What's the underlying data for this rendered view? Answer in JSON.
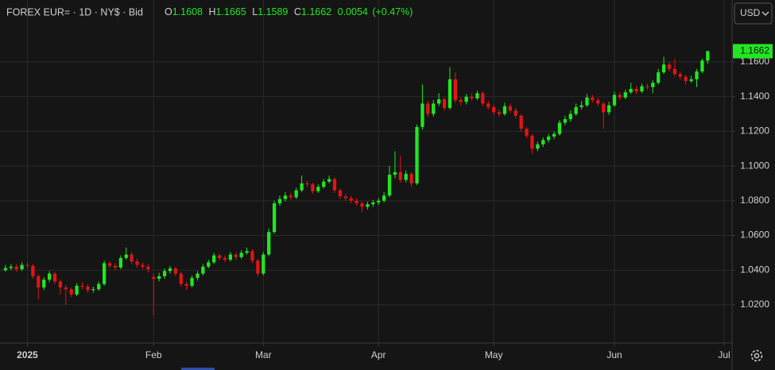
{
  "header": {
    "symbol": "FOREX EUR= · 1D · NY$ · Bid",
    "o": "O",
    "h": "H",
    "l": "L",
    "c": "C",
    "change": 0.0054,
    "change_percent": "(+0.47%)",
    "currency": "USD"
  },
  "chart_data": {
    "type": "candlestick",
    "up_color": "#22e622",
    "down_color": "#e31414",
    "grid": true,
    "ylim": [
      0.998,
      1.1957
    ],
    "yticks": [
      {
        "value": 1.02,
        "label": "1.0200"
      },
      {
        "value": 1.04,
        "label": "1.0400"
      },
      {
        "value": 1.06,
        "label": "1.0600"
      },
      {
        "value": 1.08,
        "label": "1.0800"
      },
      {
        "value": 1.1,
        "label": "1.1000"
      },
      {
        "value": 1.12,
        "label": "1.1200"
      },
      {
        "value": 1.14,
        "label": "1.1400"
      },
      {
        "value": 1.16,
        "label": "1.1600"
      }
    ],
    "xlim": [
      -1,
      132.3
    ],
    "xticks": [
      {
        "value": 4,
        "label": "2025"
      },
      {
        "value": 27,
        "label": "Feb"
      },
      {
        "value": 47,
        "label": "Mar"
      },
      {
        "value": 68,
        "label": "Apr"
      },
      {
        "value": 89,
        "label": "May"
      },
      {
        "value": 111,
        "label": "Jun"
      },
      {
        "value": 131,
        "label": "Jul"
      }
    ],
    "open": [
      1.04,
      1.0412,
      1.042,
      1.0405,
      1.043,
      1.0425,
      1.0365,
      1.03,
      1.0345,
      1.038,
      1.0335,
      1.03,
      1.029,
      1.026,
      1.031,
      1.0305,
      1.0285,
      1.029,
      1.032,
      1.044,
      1.0425,
      1.0415,
      1.047,
      1.049,
      1.045,
      1.043,
      1.042,
      1.036,
      1.035,
      1.0365,
      1.0395,
      1.041,
      1.038,
      1.032,
      1.031,
      1.0355,
      1.038,
      1.042,
      1.0445,
      1.0485,
      1.047,
      1.046,
      1.049,
      1.0475,
      1.05,
      1.051,
      1.0455,
      1.038,
      1.049,
      1.062,
      1.0785,
      1.081,
      1.083,
      1.082,
      1.086,
      1.09,
      1.0895,
      1.0855,
      1.088,
      1.091,
      1.0925,
      1.086,
      1.0825,
      1.0815,
      1.08,
      1.0785,
      1.0765,
      1.078,
      1.079,
      1.08,
      1.083,
      1.095,
      1.0965,
      1.092,
      1.0955,
      1.09,
      1.1225,
      1.136,
      1.13,
      1.136,
      1.1385,
      1.1335,
      1.15,
      1.138,
      1.137,
      1.14,
      1.139,
      1.142,
      1.136,
      1.134,
      1.131,
      1.13,
      1.1345,
      1.132,
      1.129,
      1.1215,
      1.1175,
      1.11,
      1.1125,
      1.115,
      1.117,
      1.1185,
      1.125,
      1.127,
      1.13,
      1.134,
      1.135,
      1.1395,
      1.138,
      1.136,
      1.131,
      1.135,
      1.141,
      1.1395,
      1.1425,
      1.1445,
      1.143,
      1.146,
      1.1455,
      1.148,
      1.154,
      1.1585,
      1.156,
      1.153,
      1.1515,
      1.149,
      1.15,
      1.1545,
      1.1608
    ],
    "high": [
      1.043,
      1.0435,
      1.0435,
      1.0445,
      1.0445,
      1.0435,
      1.0375,
      1.036,
      1.0395,
      1.039,
      1.0345,
      1.0315,
      1.03,
      1.0325,
      1.033,
      1.032,
      1.0305,
      1.0335,
      1.0455,
      1.045,
      1.044,
      1.0485,
      1.053,
      1.0505,
      1.0465,
      1.0445,
      1.0435,
      1.038,
      1.0385,
      1.041,
      1.0425,
      1.042,
      1.039,
      1.0335,
      1.037,
      1.0395,
      1.0435,
      1.046,
      1.05,
      1.0495,
      1.0485,
      1.0505,
      1.05,
      1.0515,
      1.053,
      1.052,
      1.0465,
      1.0505,
      1.064,
      1.08,
      1.083,
      1.085,
      1.0845,
      1.0875,
      1.0945,
      1.0915,
      1.0905,
      1.0895,
      1.0925,
      1.0945,
      1.0935,
      1.087,
      1.084,
      1.083,
      1.0815,
      1.0795,
      1.0795,
      1.0805,
      1.0815,
      1.085,
      1.1,
      1.1085,
      1.106,
      1.0975,
      1.0965,
      1.124,
      1.147,
      1.1375,
      1.138,
      1.142,
      1.1395,
      1.157,
      1.154,
      1.1395,
      1.1415,
      1.142,
      1.1435,
      1.143,
      1.1375,
      1.1355,
      1.1325,
      1.1365,
      1.136,
      1.1335,
      1.13,
      1.1225,
      1.1185,
      1.114,
      1.1165,
      1.1185,
      1.12,
      1.1265,
      1.129,
      1.132,
      1.136,
      1.1375,
      1.1415,
      1.141,
      1.1395,
      1.137,
      1.137,
      1.143,
      1.1425,
      1.144,
      1.148,
      1.146,
      1.1475,
      1.1475,
      1.1495,
      1.156,
      1.163,
      1.16,
      1.162,
      1.1545,
      1.1525,
      1.152,
      1.156,
      1.162,
      1.1665
    ],
    "low": [
      1.039,
      1.04,
      1.039,
      1.0395,
      1.041,
      1.035,
      1.023,
      1.0285,
      1.033,
      1.032,
      1.026,
      1.02,
      1.0245,
      1.025,
      1.029,
      1.027,
      1.027,
      1.028,
      1.031,
      1.041,
      1.04,
      1.0405,
      1.046,
      1.0435,
      1.0415,
      1.0405,
      1.0385,
      1.014,
      1.0335,
      1.035,
      1.038,
      1.0365,
      1.0305,
      1.0285,
      1.03,
      1.034,
      1.037,
      1.041,
      1.0435,
      1.0455,
      1.0445,
      1.045,
      1.046,
      1.0465,
      1.049,
      1.044,
      1.0365,
      1.037,
      1.048,
      1.061,
      1.077,
      1.0795,
      1.0805,
      1.081,
      1.085,
      1.088,
      1.084,
      1.0845,
      1.087,
      1.09,
      1.0845,
      1.081,
      1.08,
      1.0785,
      1.077,
      1.0735,
      1.075,
      1.0765,
      1.0775,
      1.079,
      1.082,
      1.093,
      1.0905,
      1.0905,
      1.088,
      1.089,
      1.121,
      1.128,
      1.1285,
      1.1345,
      1.132,
      1.1325,
      1.1365,
      1.135,
      1.1355,
      1.1375,
      1.138,
      1.1345,
      1.1325,
      1.1295,
      1.1285,
      1.129,
      1.1305,
      1.1275,
      1.12,
      1.116,
      1.107,
      1.1085,
      1.111,
      1.1135,
      1.1155,
      1.1175,
      1.1235,
      1.1255,
      1.129,
      1.1325,
      1.134,
      1.1365,
      1.1345,
      1.1215,
      1.1295,
      1.134,
      1.138,
      1.1385,
      1.1415,
      1.1415,
      1.142,
      1.144,
      1.142,
      1.147,
      1.153,
      1.1545,
      1.1515,
      1.15,
      1.147,
      1.148,
      1.1455,
      1.1535,
      1.1589
    ],
    "close": [
      1.0412,
      1.042,
      1.0405,
      1.043,
      1.0425,
      1.0365,
      1.03,
      1.0345,
      1.038,
      1.0335,
      1.03,
      1.029,
      1.026,
      1.031,
      1.0305,
      1.0285,
      1.029,
      1.032,
      1.044,
      1.0425,
      1.0415,
      1.047,
      1.049,
      1.045,
      1.043,
      1.042,
      1.0405,
      1.035,
      1.0365,
      1.0395,
      1.041,
      1.038,
      1.032,
      1.031,
      1.0355,
      1.038,
      1.042,
      1.0445,
      1.0485,
      1.047,
      1.046,
      1.049,
      1.0475,
      1.05,
      1.051,
      1.0455,
      1.038,
      1.049,
      1.062,
      1.0785,
      1.081,
      1.083,
      1.082,
      1.086,
      1.09,
      1.0895,
      1.0855,
      1.088,
      1.091,
      1.0925,
      1.086,
      1.0825,
      1.0815,
      1.08,
      1.0785,
      1.0765,
      1.078,
      1.079,
      1.08,
      1.083,
      1.095,
      1.0965,
      1.092,
      1.0955,
      1.09,
      1.1225,
      1.136,
      1.13,
      1.136,
      1.1385,
      1.1335,
      1.15,
      1.138,
      1.137,
      1.14,
      1.139,
      1.142,
      1.136,
      1.134,
      1.131,
      1.13,
      1.1345,
      1.132,
      1.129,
      1.1215,
      1.1175,
      1.11,
      1.1125,
      1.115,
      1.117,
      1.1185,
      1.125,
      1.127,
      1.13,
      1.134,
      1.135,
      1.1395,
      1.138,
      1.136,
      1.131,
      1.135,
      1.141,
      1.1395,
      1.1425,
      1.1445,
      1.143,
      1.146,
      1.1455,
      1.148,
      1.154,
      1.1585,
      1.156,
      1.153,
      1.1515,
      1.149,
      1.15,
      1.1545,
      1.1608,
      1.1662
    ]
  }
}
